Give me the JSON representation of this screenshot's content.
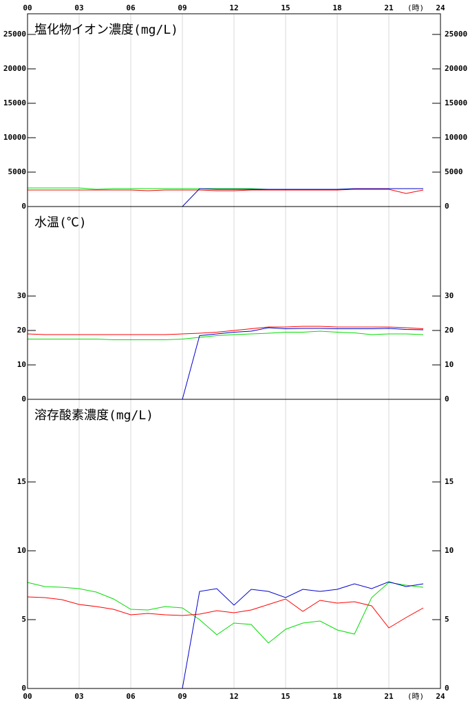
{
  "chart_data": [
    {
      "type": "line",
      "title": "塩化物イオン濃度(mg/L)",
      "xlabel": "(時)",
      "x": [
        0,
        1,
        2,
        3,
        4,
        5,
        6,
        7,
        8,
        9,
        10,
        11,
        12,
        13,
        14,
        15,
        16,
        17,
        18,
        19,
        20,
        21,
        22,
        23
      ],
      "xlim": [
        0,
        24
      ],
      "xticks": [
        {
          "value": 0,
          "label": "00"
        },
        {
          "value": 3,
          "label": "03"
        },
        {
          "value": 6,
          "label": "06"
        },
        {
          "value": 9,
          "label": "09"
        },
        12,
        15,
        18,
        21,
        24
      ],
      "ylim": [
        0,
        28000
      ],
      "yticks": [
        0,
        5000,
        10000,
        15000,
        20000,
        25000
      ],
      "grid": true,
      "series": [
        {
          "color": "#00dd00",
          "values": [
            2700,
            2700,
            2700,
            2700,
            2500,
            2600,
            2600,
            2600,
            2600,
            2600,
            2600,
            2600,
            2600,
            2600,
            2500,
            2500,
            2500,
            2500,
            2500,
            2600,
            2600,
            2600,
            2600,
            2600
          ]
        },
        {
          "color": "#ff0000",
          "values": [
            2400,
            2400,
            2400,
            2400,
            2400,
            2400,
            2400,
            2300,
            2400,
            2400,
            2400,
            2300,
            2300,
            2400,
            2400,
            2400,
            2400,
            2400,
            2400,
            2500,
            2500,
            2500,
            1900,
            2400
          ]
        },
        {
          "color": "#0000cc",
          "values": [
            0,
            0,
            0,
            0,
            0,
            0,
            0,
            0,
            0,
            0,
            2600,
            2500,
            2500,
            2500,
            2500,
            2500,
            2500,
            2500,
            2500,
            2600,
            2600,
            2600,
            2600,
            2600
          ]
        }
      ]
    },
    {
      "type": "line",
      "title": "水温(℃)",
      "x": [
        0,
        1,
        2,
        3,
        4,
        5,
        6,
        7,
        8,
        9,
        10,
        11,
        12,
        13,
        14,
        15,
        16,
        17,
        18,
        19,
        20,
        21,
        22,
        23
      ],
      "xlim": [
        0,
        24
      ],
      "xticks": [
        3,
        6,
        9,
        12,
        15,
        18,
        21
      ],
      "ylim": [
        0,
        56
      ],
      "yticks": [
        0,
        10,
        20,
        30
      ],
      "grid": true,
      "series": [
        {
          "color": "#ff0000",
          "values": [
            19,
            18.8,
            18.8,
            18.8,
            18.8,
            18.8,
            18.8,
            18.8,
            18.8,
            19,
            19.2,
            19.5,
            20,
            20.5,
            21,
            21,
            21.2,
            21.2,
            21,
            21,
            21,
            21,
            20.8,
            20.5
          ]
        },
        {
          "color": "#00dd00",
          "values": [
            17.5,
            17.5,
            17.5,
            17.5,
            17.5,
            17.3,
            17.3,
            17.3,
            17.3,
            17.5,
            18,
            18.5,
            18.8,
            19,
            19.2,
            19.5,
            19.5,
            19.8,
            19.5,
            19.3,
            18.8,
            19,
            19,
            18.8
          ]
        },
        {
          "color": "#0000cc",
          "values": [
            0,
            0,
            0,
            0,
            0,
            0,
            0,
            0,
            0,
            0,
            18.5,
            19,
            19.5,
            19.8,
            20.8,
            20.5,
            20.6,
            20.6,
            20.5,
            20.5,
            20.5,
            20.6,
            20.3,
            20.2
          ]
        }
      ]
    },
    {
      "type": "line",
      "title": "溶存酸素濃度(mg/L)",
      "xlabel": "(時)",
      "x": [
        0,
        1,
        2,
        3,
        4,
        5,
        6,
        7,
        8,
        9,
        10,
        11,
        12,
        13,
        14,
        15,
        16,
        17,
        18,
        19,
        20,
        21,
        22,
        23
      ],
      "xlim": [
        0,
        24
      ],
      "xticks": [
        {
          "value": 0,
          "label": "00"
        },
        {
          "value": 3,
          "label": "03"
        },
        {
          "value": 6,
          "label": "06"
        },
        {
          "value": 9,
          "label": "09"
        },
        12,
        15,
        18,
        21,
        24
      ],
      "ylim": [
        0,
        21
      ],
      "yticks": [
        0,
        5,
        10,
        15
      ],
      "grid": true,
      "series": [
        {
          "color": "#00dd00",
          "values": [
            7.7,
            7.4,
            7.35,
            7.25,
            7.0,
            6.5,
            5.75,
            5.7,
            5.95,
            5.85,
            5.0,
            3.9,
            4.75,
            4.65,
            3.3,
            4.3,
            4.75,
            4.9,
            4.25,
            3.95,
            6.6,
            7.7,
            7.5,
            7.35
          ]
        },
        {
          "color": "#ff0000",
          "values": [
            6.65,
            6.6,
            6.45,
            6.1,
            5.95,
            5.75,
            5.35,
            5.45,
            5.35,
            5.3,
            5.4,
            5.65,
            5.5,
            5.7,
            6.1,
            6.5,
            5.6,
            6.4,
            6.2,
            6.3,
            6.0,
            4.4,
            5.15,
            5.85
          ]
        },
        {
          "color": "#0000cc",
          "values": [
            0,
            0,
            0,
            0,
            0,
            0,
            0,
            0,
            0,
            0,
            7.05,
            7.25,
            6.05,
            7.2,
            7.05,
            6.6,
            7.2,
            7.05,
            7.2,
            7.6,
            7.25,
            7.75,
            7.4,
            7.6
          ]
        }
      ]
    }
  ]
}
